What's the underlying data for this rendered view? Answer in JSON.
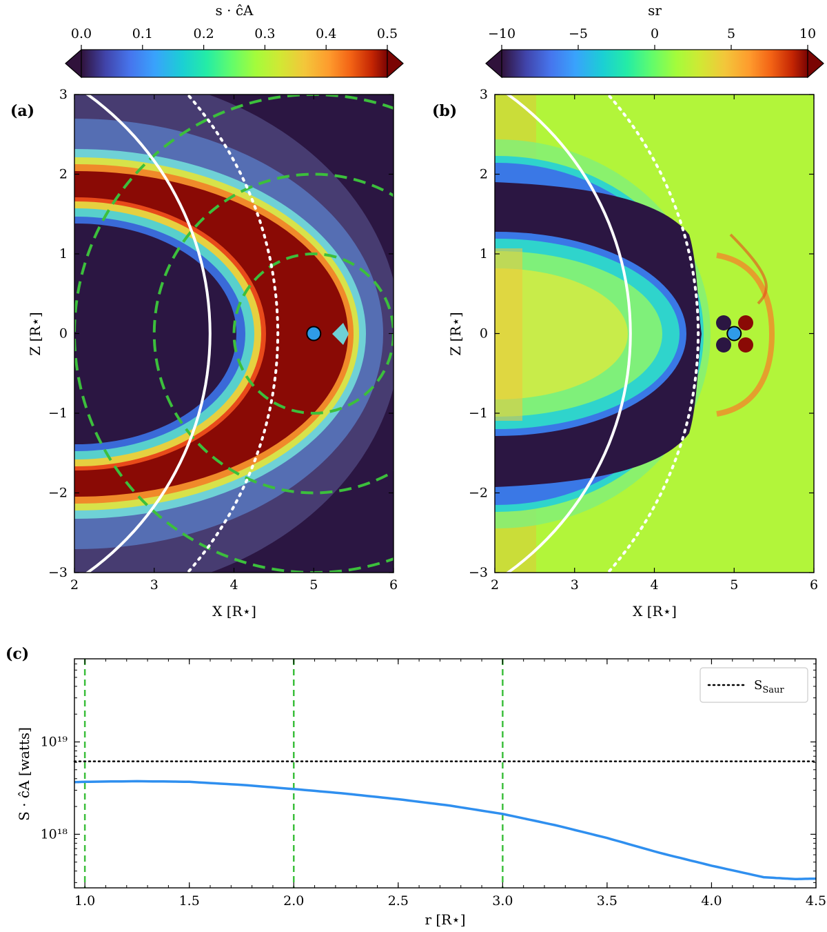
{
  "chart_data": [
    {
      "panel": "(a)",
      "type": "heatmap",
      "colorbar": {
        "label": "s · ĉA",
        "ticks": [
          "0.0",
          "0.1",
          "0.2",
          "0.3",
          "0.4",
          "0.5"
        ],
        "range": [
          0.0,
          0.5
        ],
        "colormap": "turbo",
        "extend": "both"
      },
      "xlabel": "X [R⋆]",
      "ylabel": "Z [R⋆]",
      "xlim": [
        2,
        6
      ],
      "ylim": [
        -3,
        3
      ],
      "xticks": [
        "2",
        "3",
        "4",
        "5",
        "6"
      ],
      "yticks": [
        "−3",
        "−2",
        "−1",
        "0",
        "1",
        "2",
        "3"
      ],
      "body_position": [
        5,
        0
      ],
      "body_color": "#2f9be8",
      "dashed_circle_radii": [
        1,
        2,
        3
      ],
      "dashed_circle_color": "#3cbf3c",
      "solid_arc": {
        "center_x": 0,
        "radius": 3.7,
        "color": "#ffffff"
      },
      "dotted_arc": {
        "center_x": 0,
        "radius": 4.55,
        "color": "#ffffff"
      }
    },
    {
      "panel": "(b)",
      "type": "heatmap",
      "colorbar": {
        "label": "sr",
        "ticks": [
          "−10",
          "−5",
          "0",
          "5",
          "10"
        ],
        "range": [
          -10,
          10
        ],
        "colormap": "turbo",
        "extend": "both"
      },
      "xlabel": "X [R⋆]",
      "ylabel": "Z [R⋆]",
      "xlim": [
        2,
        6
      ],
      "ylim": [
        -3,
        3
      ],
      "xticks": [
        "2",
        "3",
        "4",
        "5",
        "6"
      ],
      "yticks": [
        "−3",
        "−2",
        "−1",
        "0",
        "1",
        "2",
        "3"
      ],
      "body_position": [
        5,
        0
      ],
      "body_color": "#2f9be8",
      "solid_arc": {
        "center_x": 0,
        "radius": 3.7,
        "color": "#ffffff"
      },
      "dotted_arc": {
        "center_x": 0,
        "radius": 4.55,
        "color": "#ffffff"
      }
    },
    {
      "panel": "(c)",
      "type": "line",
      "xlabel": "r [R⋆]",
      "ylabel": "S · ĉA  [watts]",
      "xlim": [
        0.95,
        4.5
      ],
      "ylim_log10": [
        17.42,
        19.9
      ],
      "yscale": "log",
      "xticks": [
        "1.0",
        "1.5",
        "2.0",
        "2.5",
        "3.0",
        "3.5",
        "4.0",
        "4.5"
      ],
      "yticks": [
        "10¹⁸",
        "10¹⁹"
      ],
      "legend_position": "top-right",
      "series": [
        {
          "color": "#2f8fef",
          "style": "solid",
          "x": [
            0.95,
            1.0,
            1.25,
            1.5,
            1.75,
            2.0,
            2.25,
            2.5,
            2.75,
            3.0,
            3.25,
            3.5,
            3.75,
            4.0,
            4.25,
            4.4,
            4.5
          ],
          "log10_y": [
            18.565,
            18.568,
            18.575,
            18.568,
            18.535,
            18.49,
            18.44,
            18.38,
            18.31,
            18.22,
            18.1,
            17.96,
            17.8,
            17.66,
            17.535,
            17.515,
            17.52
          ]
        },
        {
          "name": "SSaur",
          "color": "#000000",
          "style": "dotted",
          "x": [
            0.95,
            4.5
          ],
          "log10_y": [
            18.79,
            18.79
          ]
        }
      ],
      "vlines": {
        "x": [
          1.0,
          2.0,
          3.0
        ],
        "color": "#3cbf3c",
        "style": "dashed"
      }
    }
  ],
  "legend": {
    "main": "S",
    "sub": "Saur"
  }
}
